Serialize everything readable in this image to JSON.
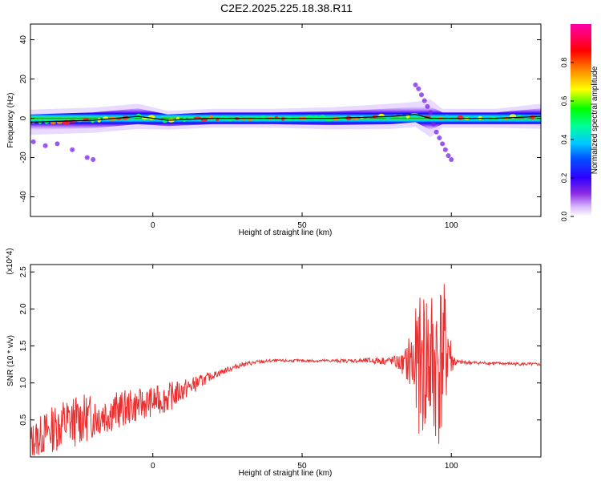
{
  "title": "C2E2.2025.225.18.38.R11",
  "chart_data": [
    {
      "type": "heatmap",
      "xlabel": "Height of straight line (km)",
      "ylabel": "Frequency (Hz)",
      "xlim": [
        -41,
        130
      ],
      "ylim": [
        -50,
        48
      ],
      "xticks": [
        0,
        50,
        100
      ],
      "yticks": [
        -40,
        -20,
        0,
        20,
        40
      ],
      "colorbar": {
        "label": "Normalized spectral amplitude",
        "range": [
          0,
          1
        ],
        "ticks": [
          0.0,
          0.2,
          0.4,
          0.6,
          0.8
        ],
        "colors": [
          "#ffffff",
          "#b060ff",
          "#5a00e0",
          "#0000ff",
          "#00c8ff",
          "#00ff99",
          "#00ff00",
          "#ffff00",
          "#ff8800",
          "#ff0000",
          "#ff0066",
          "#ff00aa"
        ]
      },
      "band": [
        {
          "x": -41,
          "f": -2,
          "half_width": 4,
          "amp": 0.55
        },
        {
          "x": -20,
          "f": -1,
          "half_width": 4,
          "amp": 0.6
        },
        {
          "x": -5,
          "f": 1,
          "half_width": 4,
          "amp": 0.7
        },
        {
          "x": 5,
          "f": -1,
          "half_width": 3,
          "amp": 0.8
        },
        {
          "x": 20,
          "f": 0,
          "half_width": 3,
          "amp": 0.85
        },
        {
          "x": 40,
          "f": 0,
          "half_width": 3,
          "amp": 0.85
        },
        {
          "x": 60,
          "f": 0,
          "half_width": 3.5,
          "amp": 0.8
        },
        {
          "x": 80,
          "f": 1,
          "half_width": 4,
          "amp": 0.75
        },
        {
          "x": 88,
          "f": 2,
          "half_width": 4,
          "amp": 0.7
        },
        {
          "x": 93,
          "f": 0,
          "half_width": 6,
          "amp": 0.6
        },
        {
          "x": 97,
          "f": 0,
          "half_width": 3,
          "amp": 0.85
        },
        {
          "x": 115,
          "f": 0,
          "half_width": 3,
          "amp": 0.9
        },
        {
          "x": 130,
          "f": 1,
          "half_width": 4,
          "amp": 0.75
        }
      ],
      "scatter_points": [
        {
          "x": -40,
          "f": -12
        },
        {
          "x": -36,
          "f": -14
        },
        {
          "x": -32,
          "f": -13
        },
        {
          "x": -27,
          "f": -16
        },
        {
          "x": -22,
          "f": -20
        },
        {
          "x": -20,
          "f": -21
        },
        {
          "x": 88,
          "f": 17
        },
        {
          "x": 89,
          "f": 15
        },
        {
          "x": 90,
          "f": 12
        },
        {
          "x": 91,
          "f": 9
        },
        {
          "x": 92,
          "f": 6
        },
        {
          "x": 93,
          "f": 3
        },
        {
          "x": 94,
          "f": -3
        },
        {
          "x": 95,
          "f": -7
        },
        {
          "x": 96,
          "f": -10
        },
        {
          "x": 97,
          "f": -13
        },
        {
          "x": 98,
          "f": -16
        },
        {
          "x": 99,
          "f": -19
        },
        {
          "x": 100,
          "f": -21
        }
      ]
    },
    {
      "type": "line",
      "xlabel": "Height of straight line (km)",
      "ylabel": "SNR (10 * v/v)",
      "scale_label": "(x10^4)",
      "xlim": [
        -41,
        130
      ],
      "ylim": [
        0,
        2.6
      ],
      "xticks": [
        0,
        50,
        100
      ],
      "yticks": [
        0.5,
        1.0,
        1.5,
        2.0,
        2.5
      ],
      "ytick_labels": [
        "0.5",
        "1.0",
        "1.5",
        "2.0",
        "2.5"
      ],
      "color": "#e83030",
      "series": [
        {
          "x": [
            -41,
            -35,
            -30,
            -25,
            -20,
            -15,
            -10,
            -5,
            0,
            5,
            10,
            15,
            20,
            25,
            30,
            35,
            40,
            50,
            60,
            70,
            75,
            80,
            84,
            86,
            88,
            90,
            92,
            94,
            96,
            98,
            99,
            100,
            102,
            110,
            120,
            130
          ],
          "y": [
            0.2,
            0.35,
            0.45,
            0.5,
            0.55,
            0.6,
            0.65,
            0.7,
            0.75,
            0.8,
            0.9,
            1.0,
            1.1,
            1.18,
            1.25,
            1.28,
            1.3,
            1.3,
            1.3,
            1.3,
            1.3,
            1.3,
            1.25,
            1.3,
            1.2,
            1.25,
            1.3,
            1.2,
            1.3,
            1.4,
            1.5,
            1.3,
            1.28,
            1.27,
            1.26,
            1.25
          ],
          "noise_amplitude": [
            0.25,
            0.3,
            0.35,
            0.35,
            0.3,
            0.28,
            0.25,
            0.22,
            0.2,
            0.2,
            0.15,
            0.1,
            0.05,
            0.04,
            0.03,
            0.03,
            0.02,
            0.02,
            0.02,
            0.03,
            0.05,
            0.06,
            0.15,
            0.4,
            0.8,
            1.0,
            1.2,
            1.1,
            1.2,
            0.9,
            0.6,
            0.2,
            0.03,
            0.02,
            0.02,
            0.02
          ]
        }
      ]
    }
  ]
}
